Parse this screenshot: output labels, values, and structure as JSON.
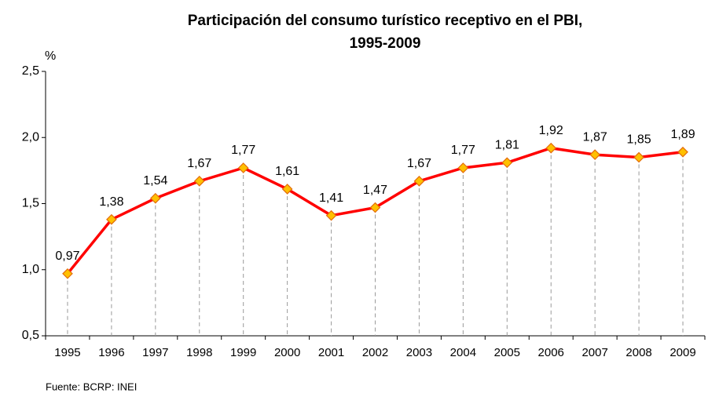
{
  "chart_data": {
    "type": "line",
    "title": [
      "Participación del consumo turístico receptivo en el PBI,",
      "1995-2009"
    ],
    "y_label": "%",
    "source": "Fuente: BCRP: INEI",
    "categories": [
      "1995",
      "1996",
      "1997",
      "1998",
      "1999",
      "2000",
      "2001",
      "2002",
      "2003",
      "2004",
      "2005",
      "2006",
      "2007",
      "2008",
      "2009"
    ],
    "values": [
      0.97,
      1.38,
      1.54,
      1.67,
      1.77,
      1.61,
      1.41,
      1.47,
      1.67,
      1.77,
      1.81,
      1.92,
      1.87,
      1.85,
      1.89
    ],
    "value_labels": [
      "0,97",
      "1,38",
      "1,54",
      "1,67",
      "1,77",
      "1,61",
      "1,41",
      "1,47",
      "1,67",
      "1,77",
      "1,81",
      "1,92",
      "1,87",
      "1,85",
      "1,89"
    ],
    "color": "#ff0000",
    "marker_color": "#ffc000",
    "ylim": [
      0.5,
      2.5
    ],
    "yticks": [
      {
        "value": 0.5,
        "label": "0,5"
      },
      {
        "value": 1.0,
        "label": "1,0"
      },
      {
        "value": 1.5,
        "label": "1,5"
      },
      {
        "value": 2.0,
        "label": "2,0"
      },
      {
        "value": 2.5,
        "label": "2,5"
      }
    ]
  }
}
